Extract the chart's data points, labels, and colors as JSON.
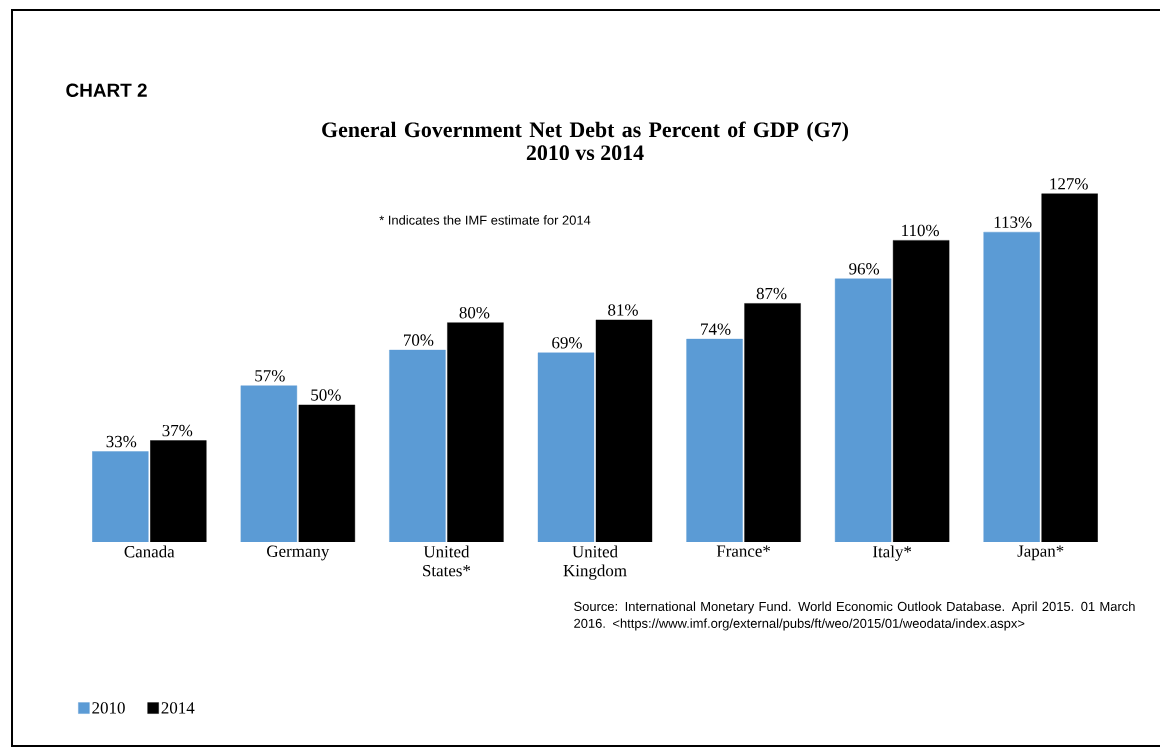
{
  "chart_data": {
    "type": "bar",
    "title": "General Government Net Debt as Percent of GDP  (G7)",
    "subtitle": "2010 vs 2014",
    "categories": [
      "Canada",
      "Germany",
      "United States*",
      "United Kingdom",
      "France*",
      "Italy*",
      "Japan*"
    ],
    "series": [
      {
        "name": "2010",
        "color": "#5b9bd5",
        "values": [
          33,
          57,
          70,
          69,
          74,
          96,
          113
        ],
        "value_labels": [
          "33%",
          "57%",
          "70%",
          "69%",
          "74%",
          "96%",
          "113%"
        ]
      },
      {
        "name": "2014",
        "color": "#000000",
        "values": [
          37,
          50,
          80,
          81,
          87,
          110,
          127
        ],
        "value_labels": [
          "37%",
          "50%",
          "80%",
          "81%",
          "87%",
          "110%",
          "127%"
        ]
      }
    ],
    "legend": "bottom left",
    "annotations": [
      "CHART 2",
      "* Indicates the IMF estimate for 2014",
      "Source: International Monetary Fund. World Economic Outlook Database. April 2015. 01 March 2016. <https://www.imf.org/external/pubs/ft/weo/2015/01/weodata/index.aspx>"
    ]
  }
}
